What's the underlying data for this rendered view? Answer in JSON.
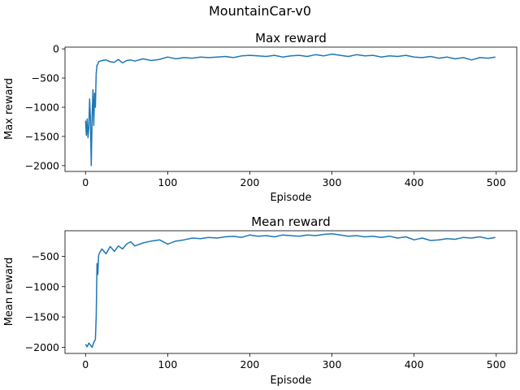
{
  "figure": {
    "suptitle": "MountainCar-v0"
  },
  "colors": {
    "line": "#1f77b4",
    "axes": "#000000",
    "background": "#ffffff"
  },
  "chart_data": [
    {
      "type": "line",
      "title": "Max reward",
      "xlabel": "Episode",
      "ylabel": "Max reward",
      "xlim": [
        -25,
        525
      ],
      "ylim": [
        -2100,
        30
      ],
      "xticks": [
        0,
        100,
        200,
        300,
        400,
        500
      ],
      "yticks": [
        0,
        -500,
        -1000,
        -1500,
        -2000
      ],
      "xtick_labels": [
        "0",
        "100",
        "200",
        "300",
        "400",
        "500"
      ],
      "ytick_labels": [
        "0",
        "−500",
        "−1000",
        "−1500",
        "−2000"
      ],
      "grid": false,
      "series": [
        {
          "x": [
            0,
            1,
            2,
            3,
            4,
            5,
            6,
            7,
            8,
            9,
            10,
            11,
            12,
            13,
            14,
            15,
            16,
            18,
            20,
            25,
            30,
            35,
            40,
            45,
            50,
            55,
            60,
            70,
            80,
            90,
            100,
            110,
            120,
            130,
            140,
            150,
            160,
            170,
            180,
            190,
            200,
            210,
            220,
            230,
            240,
            250,
            260,
            270,
            280,
            290,
            300,
            310,
            320,
            330,
            340,
            350,
            360,
            370,
            380,
            390,
            400,
            410,
            420,
            430,
            440,
            450,
            460,
            470,
            480,
            490,
            499
          ],
          "values": [
            -1230,
            -1480,
            -1200,
            -1520,
            -1350,
            -860,
            -1200,
            -2000,
            -1150,
            -700,
            -1310,
            -760,
            -1000,
            -420,
            -280,
            -260,
            -220,
            -210,
            -200,
            -190,
            -220,
            -230,
            -180,
            -240,
            -200,
            -190,
            -210,
            -170,
            -200,
            -180,
            -140,
            -170,
            -150,
            -160,
            -140,
            -150,
            -140,
            -130,
            -150,
            -120,
            -110,
            -120,
            -130,
            -110,
            -140,
            -120,
            -110,
            -130,
            -100,
            -120,
            -90,
            -110,
            -130,
            -100,
            -120,
            -110,
            -140,
            -120,
            -130,
            -110,
            -140,
            -150,
            -130,
            -160,
            -140,
            -170,
            -150,
            -190,
            -150,
            -160,
            -140
          ]
        }
      ]
    },
    {
      "type": "line",
      "title": "Mean reward",
      "xlabel": "Episode",
      "ylabel": "Mean reward",
      "xlim": [
        -25,
        525
      ],
      "ylim": [
        -2100,
        -80
      ],
      "xticks": [
        0,
        100,
        200,
        300,
        400,
        500
      ],
      "yticks": [
        -500,
        -1000,
        -1500,
        -2000
      ],
      "xtick_labels": [
        "0",
        "100",
        "200",
        "300",
        "400",
        "500"
      ],
      "ytick_labels": [
        "−500",
        "−1000",
        "−1500",
        "−2000"
      ],
      "grid": false,
      "series": [
        {
          "x": [
            0,
            2,
            4,
            6,
            8,
            10,
            12,
            13,
            14,
            15,
            16,
            18,
            20,
            25,
            30,
            35,
            40,
            45,
            50,
            55,
            60,
            70,
            80,
            90,
            100,
            110,
            120,
            130,
            140,
            150,
            160,
            170,
            180,
            190,
            200,
            210,
            220,
            230,
            240,
            250,
            260,
            270,
            280,
            290,
            300,
            310,
            320,
            330,
            340,
            350,
            360,
            370,
            380,
            390,
            400,
            410,
            420,
            430,
            440,
            450,
            460,
            470,
            480,
            490,
            499
          ],
          "values": [
            -1950,
            -1990,
            -1930,
            -1960,
            -2000,
            -1920,
            -1870,
            -1500,
            -620,
            -800,
            -480,
            -420,
            -380,
            -460,
            -340,
            -420,
            -330,
            -380,
            -300,
            -260,
            -330,
            -280,
            -250,
            -230,
            -300,
            -250,
            -230,
            -200,
            -210,
            -190,
            -200,
            -180,
            -170,
            -190,
            -150,
            -170,
            -160,
            -180,
            -150,
            -160,
            -170,
            -150,
            -160,
            -140,
            -130,
            -150,
            -170,
            -160,
            -180,
            -170,
            -190,
            -170,
            -200,
            -180,
            -230,
            -200,
            -240,
            -230,
            -210,
            -220,
            -190,
            -200,
            -180,
            -210,
            -190
          ]
        }
      ]
    }
  ]
}
